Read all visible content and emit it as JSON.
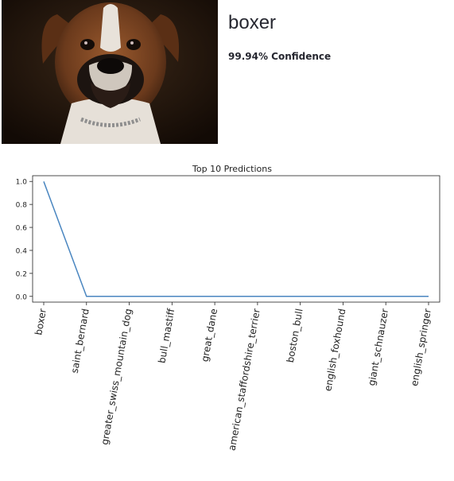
{
  "result": {
    "label": "boxer",
    "confidence_text": "99.94% Confidence"
  },
  "image": {
    "subject": "boxer dog portrait photo"
  },
  "chart_data": {
    "type": "line",
    "title": "Top 10 Predictions",
    "xlabel": "",
    "ylabel": "",
    "categories": [
      "boxer",
      "saint_bernard",
      "greater_swiss_mountain_dog",
      "bull_mastiff",
      "great_dane",
      "american_staffordshire_terrier",
      "boston_bull",
      "english_foxhound",
      "giant_schnauzer",
      "english_springer"
    ],
    "series": [
      {
        "values": [
          0.9994,
          0.0,
          0.0,
          0.0,
          0.0,
          0.0,
          0.0,
          0.0,
          0.0,
          0.0
        ],
        "color": "#4a86c0"
      }
    ],
    "yticks": [
      "0.0",
      "0.2",
      "0.4",
      "0.6",
      "0.8",
      "1.0"
    ],
    "ylim": [
      -0.05,
      1.05
    ],
    "grid": false,
    "x_tick_rotation": "vertical-ish (about 80 degrees)"
  }
}
